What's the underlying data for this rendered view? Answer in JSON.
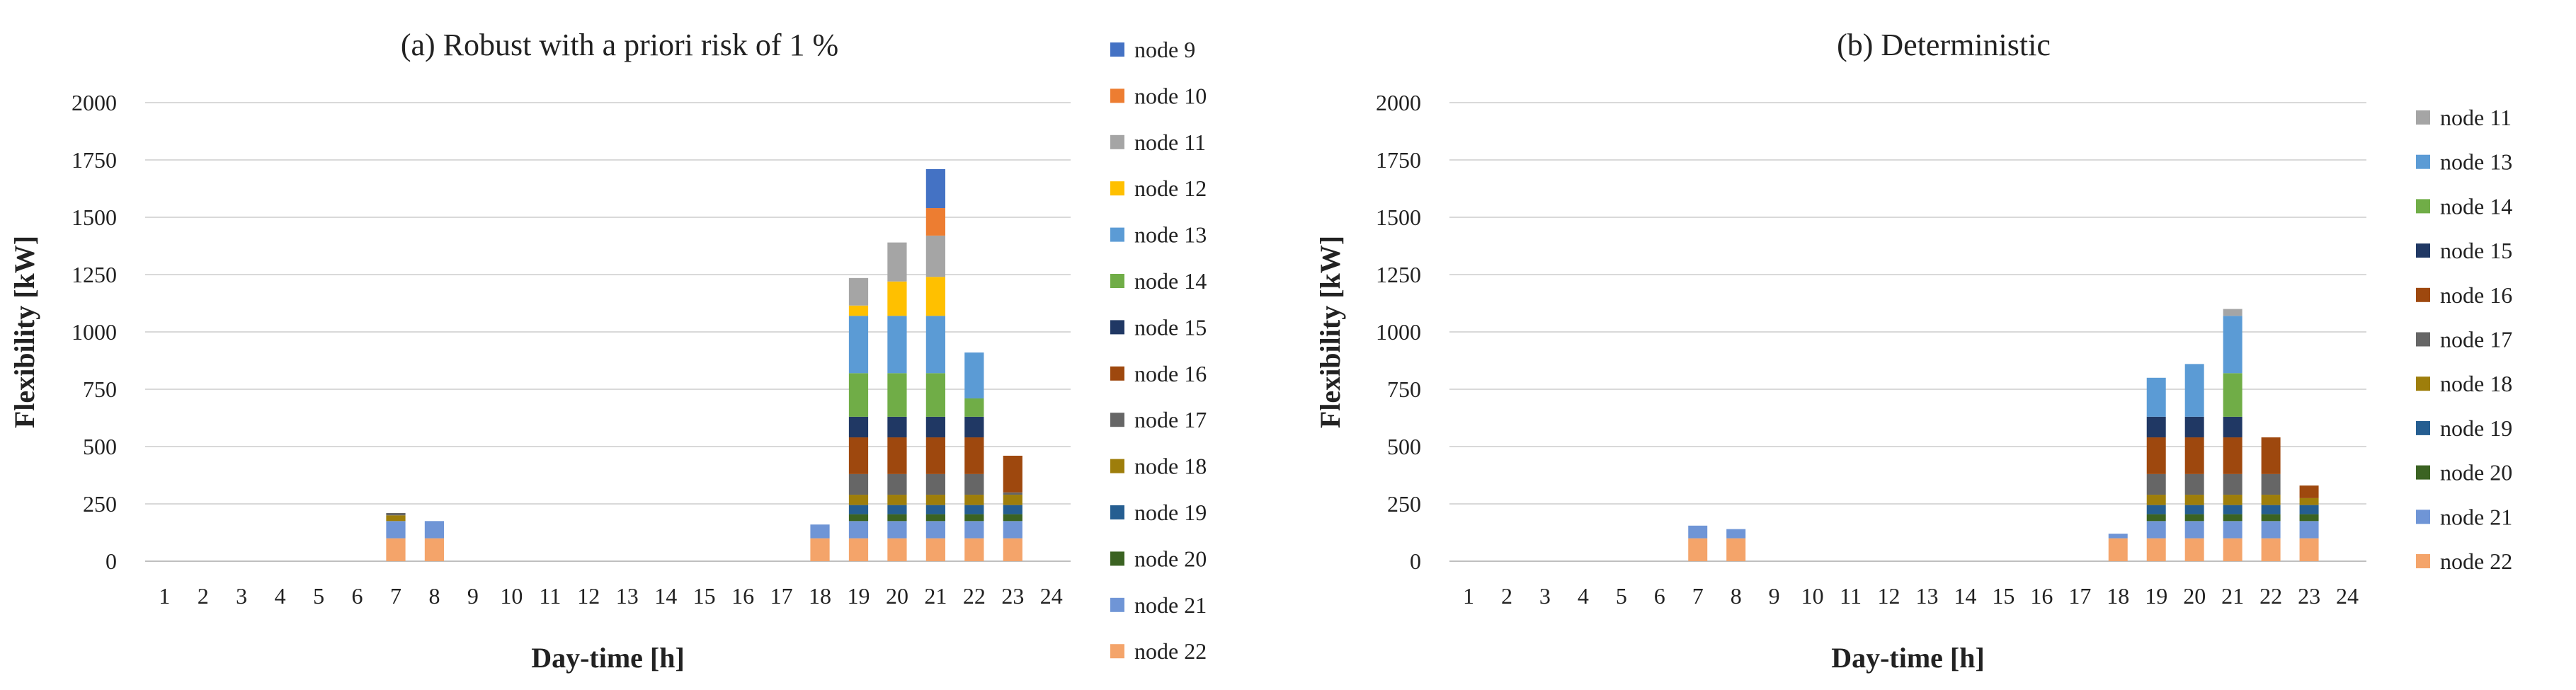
{
  "chart_data": [
    {
      "type": "bar",
      "stacked": true,
      "title": "(a) Robust with a priori risk of 1 %",
      "xlabel": "Day-time [h]",
      "ylabel": "Flexibility [kW]",
      "ylim": [
        0,
        2000
      ],
      "yticks": [
        "0",
        "250",
        "500",
        "750",
        "1000",
        "1250",
        "1500",
        "1750",
        "2000"
      ],
      "grid": true,
      "legend_position": "right",
      "categories": [
        "1",
        "2",
        "3",
        "4",
        "5",
        "6",
        "7",
        "8",
        "9",
        "10",
        "11",
        "12",
        "13",
        "14",
        "15",
        "16",
        "17",
        "18",
        "19",
        "20",
        "21",
        "22",
        "23",
        "24"
      ],
      "series": [
        {
          "name": "node 22",
          "color": "#F4A46A",
          "values": [
            0,
            0,
            0,
            0,
            0,
            0,
            100,
            100,
            0,
            0,
            0,
            0,
            0,
            0,
            0,
            0,
            0,
            100,
            100,
            100,
            100,
            100,
            100,
            0
          ]
        },
        {
          "name": "node 21",
          "color": "#6F95D6",
          "values": [
            0,
            0,
            0,
            0,
            0,
            0,
            75,
            75,
            0,
            0,
            0,
            0,
            0,
            0,
            0,
            0,
            0,
            60,
            75,
            75,
            75,
            75,
            75,
            0
          ]
        },
        {
          "name": "node 20",
          "color": "#3B6322",
          "values": [
            0,
            0,
            0,
            0,
            0,
            0,
            0,
            0,
            0,
            0,
            0,
            0,
            0,
            0,
            0,
            0,
            0,
            0,
            30,
            30,
            30,
            30,
            30,
            0
          ]
        },
        {
          "name": "node 19",
          "color": "#255E91",
          "values": [
            0,
            0,
            0,
            0,
            0,
            0,
            0,
            0,
            0,
            0,
            0,
            0,
            0,
            0,
            0,
            0,
            0,
            0,
            40,
            40,
            40,
            40,
            40,
            0
          ]
        },
        {
          "name": "node 18",
          "color": "#9E7E0B",
          "values": [
            0,
            0,
            0,
            0,
            0,
            0,
            25,
            0,
            0,
            0,
            0,
            0,
            0,
            0,
            0,
            0,
            0,
            0,
            45,
            45,
            45,
            45,
            45,
            0
          ]
        },
        {
          "name": "node 17",
          "color": "#666666",
          "values": [
            0,
            0,
            0,
            0,
            0,
            0,
            10,
            0,
            0,
            0,
            0,
            0,
            0,
            0,
            0,
            0,
            0,
            0,
            90,
            90,
            90,
            90,
            10,
            0
          ]
        },
        {
          "name": "node 16",
          "color": "#9E480E",
          "values": [
            0,
            0,
            0,
            0,
            0,
            0,
            0,
            0,
            0,
            0,
            0,
            0,
            0,
            0,
            0,
            0,
            0,
            0,
            160,
            160,
            160,
            160,
            160,
            0
          ]
        },
        {
          "name": "node 15",
          "color": "#203864",
          "values": [
            0,
            0,
            0,
            0,
            0,
            0,
            0,
            0,
            0,
            0,
            0,
            0,
            0,
            0,
            0,
            0,
            0,
            0,
            90,
            90,
            90,
            90,
            0,
            0
          ]
        },
        {
          "name": "node 14",
          "color": "#70AD47",
          "values": [
            0,
            0,
            0,
            0,
            0,
            0,
            0,
            0,
            0,
            0,
            0,
            0,
            0,
            0,
            0,
            0,
            0,
            0,
            190,
            190,
            190,
            80,
            0,
            0
          ]
        },
        {
          "name": "node 13",
          "color": "#5B9BD5",
          "values": [
            0,
            0,
            0,
            0,
            0,
            0,
            0,
            0,
            0,
            0,
            0,
            0,
            0,
            0,
            0,
            0,
            0,
            0,
            250,
            250,
            250,
            200,
            0,
            0
          ]
        },
        {
          "name": "node 12",
          "color": "#FFC000",
          "values": [
            0,
            0,
            0,
            0,
            0,
            0,
            0,
            0,
            0,
            0,
            0,
            0,
            0,
            0,
            0,
            0,
            0,
            0,
            45,
            150,
            170,
            0,
            0,
            0
          ]
        },
        {
          "name": "node 11",
          "color": "#A5A5A5",
          "values": [
            0,
            0,
            0,
            0,
            0,
            0,
            0,
            0,
            0,
            0,
            0,
            0,
            0,
            0,
            0,
            0,
            0,
            0,
            120,
            170,
            180,
            0,
            0,
            0
          ]
        },
        {
          "name": "node 10",
          "color": "#ED7D31",
          "values": [
            0,
            0,
            0,
            0,
            0,
            0,
            0,
            0,
            0,
            0,
            0,
            0,
            0,
            0,
            0,
            0,
            0,
            0,
            0,
            0,
            120,
            0,
            0,
            0
          ]
        },
        {
          "name": "node 9",
          "color": "#4472C4",
          "values": [
            0,
            0,
            0,
            0,
            0,
            0,
            0,
            0,
            0,
            0,
            0,
            0,
            0,
            0,
            0,
            0,
            0,
            0,
            0,
            0,
            170,
            0,
            0,
            0
          ]
        }
      ],
      "legend_order": [
        "node 9",
        "node 10",
        "node 11",
        "node 12",
        "node 13",
        "node 14",
        "node 15",
        "node 16",
        "node 17",
        "node 18",
        "node 19",
        "node 20",
        "node 21",
        "node 22"
      ]
    },
    {
      "type": "bar",
      "stacked": true,
      "title": "(b) Deterministic",
      "xlabel": "Day-time [h]",
      "ylabel": "Flexibility [kW]",
      "ylim": [
        0,
        2000
      ],
      "yticks": [
        "0",
        "250",
        "500",
        "750",
        "1000",
        "1250",
        "1500",
        "1750",
        "2000"
      ],
      "grid": true,
      "legend_position": "right",
      "categories": [
        "1",
        "2",
        "3",
        "4",
        "5",
        "6",
        "7",
        "8",
        "9",
        "10",
        "11",
        "12",
        "13",
        "14",
        "15",
        "16",
        "17",
        "18",
        "19",
        "20",
        "21",
        "22",
        "23",
        "24"
      ],
      "series": [
        {
          "name": "node 22",
          "color": "#F4A46A",
          "values": [
            0,
            0,
            0,
            0,
            0,
            0,
            100,
            100,
            0,
            0,
            0,
            0,
            0,
            0,
            0,
            0,
            0,
            100,
            100,
            100,
            100,
            100,
            100,
            0
          ]
        },
        {
          "name": "node 21",
          "color": "#6F95D6",
          "values": [
            0,
            0,
            0,
            0,
            0,
            0,
            55,
            40,
            0,
            0,
            0,
            0,
            0,
            0,
            0,
            0,
            0,
            20,
            75,
            75,
            75,
            75,
            75,
            0
          ]
        },
        {
          "name": "node 20",
          "color": "#3B6322",
          "values": [
            0,
            0,
            0,
            0,
            0,
            0,
            0,
            0,
            0,
            0,
            0,
            0,
            0,
            0,
            0,
            0,
            0,
            0,
            30,
            30,
            30,
            30,
            30,
            0
          ]
        },
        {
          "name": "node 19",
          "color": "#255E91",
          "values": [
            0,
            0,
            0,
            0,
            0,
            0,
            0,
            0,
            0,
            0,
            0,
            0,
            0,
            0,
            0,
            0,
            0,
            0,
            40,
            40,
            40,
            40,
            40,
            0
          ]
        },
        {
          "name": "node 18",
          "color": "#9E7E0B",
          "values": [
            0,
            0,
            0,
            0,
            0,
            0,
            0,
            0,
            0,
            0,
            0,
            0,
            0,
            0,
            0,
            0,
            0,
            0,
            45,
            45,
            45,
            45,
            30,
            0
          ]
        },
        {
          "name": "node 17",
          "color": "#666666",
          "values": [
            0,
            0,
            0,
            0,
            0,
            0,
            0,
            0,
            0,
            0,
            0,
            0,
            0,
            0,
            0,
            0,
            0,
            0,
            90,
            90,
            90,
            90,
            0,
            0
          ]
        },
        {
          "name": "node 16",
          "color": "#9E480E",
          "values": [
            0,
            0,
            0,
            0,
            0,
            0,
            0,
            0,
            0,
            0,
            0,
            0,
            0,
            0,
            0,
            0,
            0,
            0,
            160,
            160,
            160,
            160,
            55,
            0
          ]
        },
        {
          "name": "node 15",
          "color": "#203864",
          "values": [
            0,
            0,
            0,
            0,
            0,
            0,
            0,
            0,
            0,
            0,
            0,
            0,
            0,
            0,
            0,
            0,
            0,
            0,
            90,
            90,
            90,
            0,
            0,
            0
          ]
        },
        {
          "name": "node 14",
          "color": "#70AD47",
          "values": [
            0,
            0,
            0,
            0,
            0,
            0,
            0,
            0,
            0,
            0,
            0,
            0,
            0,
            0,
            0,
            0,
            0,
            0,
            0,
            0,
            190,
            0,
            0,
            0
          ]
        },
        {
          "name": "node 13",
          "color": "#5B9BD5",
          "values": [
            0,
            0,
            0,
            0,
            0,
            0,
            0,
            0,
            0,
            0,
            0,
            0,
            0,
            0,
            0,
            0,
            0,
            0,
            170,
            230,
            250,
            0,
            0,
            0
          ]
        },
        {
          "name": "node 11",
          "color": "#A5A5A5",
          "values": [
            0,
            0,
            0,
            0,
            0,
            0,
            0,
            0,
            0,
            0,
            0,
            0,
            0,
            0,
            0,
            0,
            0,
            0,
            0,
            0,
            30,
            0,
            0,
            0
          ]
        }
      ],
      "legend_order": [
        "node 11",
        "node 13",
        "node 14",
        "node 15",
        "node 16",
        "node 17",
        "node 18",
        "node 19",
        "node 20",
        "node 21",
        "node 22"
      ]
    }
  ]
}
